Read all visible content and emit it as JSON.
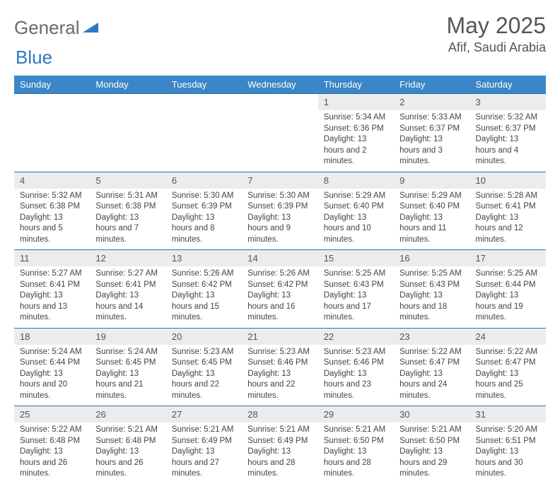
{
  "logo": {
    "part1": "General",
    "part2": "Blue"
  },
  "title": "May 2025",
  "location": "Afif, Saudi Arabia",
  "colors": {
    "header_bg": "#3b86c6",
    "header_text": "#ffffff",
    "daynum_bg": "#ececec",
    "row_border": "#2f6fa8",
    "logo_gray": "#6a6a6a",
    "logo_blue": "#2a7ac0"
  },
  "weekdays": [
    "Sunday",
    "Monday",
    "Tuesday",
    "Wednesday",
    "Thursday",
    "Friday",
    "Saturday"
  ],
  "weeks": [
    [
      {
        "empty": true
      },
      {
        "empty": true
      },
      {
        "empty": true
      },
      {
        "empty": true
      },
      {
        "num": "1",
        "sunrise": "5:34 AM",
        "sunset": "6:36 PM",
        "daylight": "13 hours and 2 minutes."
      },
      {
        "num": "2",
        "sunrise": "5:33 AM",
        "sunset": "6:37 PM",
        "daylight": "13 hours and 3 minutes."
      },
      {
        "num": "3",
        "sunrise": "5:32 AM",
        "sunset": "6:37 PM",
        "daylight": "13 hours and 4 minutes."
      }
    ],
    [
      {
        "num": "4",
        "sunrise": "5:32 AM",
        "sunset": "6:38 PM",
        "daylight": "13 hours and 5 minutes."
      },
      {
        "num": "5",
        "sunrise": "5:31 AM",
        "sunset": "6:38 PM",
        "daylight": "13 hours and 7 minutes."
      },
      {
        "num": "6",
        "sunrise": "5:30 AM",
        "sunset": "6:39 PM",
        "daylight": "13 hours and 8 minutes."
      },
      {
        "num": "7",
        "sunrise": "5:30 AM",
        "sunset": "6:39 PM",
        "daylight": "13 hours and 9 minutes."
      },
      {
        "num": "8",
        "sunrise": "5:29 AM",
        "sunset": "6:40 PM",
        "daylight": "13 hours and 10 minutes."
      },
      {
        "num": "9",
        "sunrise": "5:29 AM",
        "sunset": "6:40 PM",
        "daylight": "13 hours and 11 minutes."
      },
      {
        "num": "10",
        "sunrise": "5:28 AM",
        "sunset": "6:41 PM",
        "daylight": "13 hours and 12 minutes."
      }
    ],
    [
      {
        "num": "11",
        "sunrise": "5:27 AM",
        "sunset": "6:41 PM",
        "daylight": "13 hours and 13 minutes."
      },
      {
        "num": "12",
        "sunrise": "5:27 AM",
        "sunset": "6:41 PM",
        "daylight": "13 hours and 14 minutes."
      },
      {
        "num": "13",
        "sunrise": "5:26 AM",
        "sunset": "6:42 PM",
        "daylight": "13 hours and 15 minutes."
      },
      {
        "num": "14",
        "sunrise": "5:26 AM",
        "sunset": "6:42 PM",
        "daylight": "13 hours and 16 minutes."
      },
      {
        "num": "15",
        "sunrise": "5:25 AM",
        "sunset": "6:43 PM",
        "daylight": "13 hours and 17 minutes."
      },
      {
        "num": "16",
        "sunrise": "5:25 AM",
        "sunset": "6:43 PM",
        "daylight": "13 hours and 18 minutes."
      },
      {
        "num": "17",
        "sunrise": "5:25 AM",
        "sunset": "6:44 PM",
        "daylight": "13 hours and 19 minutes."
      }
    ],
    [
      {
        "num": "18",
        "sunrise": "5:24 AM",
        "sunset": "6:44 PM",
        "daylight": "13 hours and 20 minutes."
      },
      {
        "num": "19",
        "sunrise": "5:24 AM",
        "sunset": "6:45 PM",
        "daylight": "13 hours and 21 minutes."
      },
      {
        "num": "20",
        "sunrise": "5:23 AM",
        "sunset": "6:45 PM",
        "daylight": "13 hours and 22 minutes."
      },
      {
        "num": "21",
        "sunrise": "5:23 AM",
        "sunset": "6:46 PM",
        "daylight": "13 hours and 22 minutes."
      },
      {
        "num": "22",
        "sunrise": "5:23 AM",
        "sunset": "6:46 PM",
        "daylight": "13 hours and 23 minutes."
      },
      {
        "num": "23",
        "sunrise": "5:22 AM",
        "sunset": "6:47 PM",
        "daylight": "13 hours and 24 minutes."
      },
      {
        "num": "24",
        "sunrise": "5:22 AM",
        "sunset": "6:47 PM",
        "daylight": "13 hours and 25 minutes."
      }
    ],
    [
      {
        "num": "25",
        "sunrise": "5:22 AM",
        "sunset": "6:48 PM",
        "daylight": "13 hours and 26 minutes."
      },
      {
        "num": "26",
        "sunrise": "5:21 AM",
        "sunset": "6:48 PM",
        "daylight": "13 hours and 26 minutes."
      },
      {
        "num": "27",
        "sunrise": "5:21 AM",
        "sunset": "6:49 PM",
        "daylight": "13 hours and 27 minutes."
      },
      {
        "num": "28",
        "sunrise": "5:21 AM",
        "sunset": "6:49 PM",
        "daylight": "13 hours and 28 minutes."
      },
      {
        "num": "29",
        "sunrise": "5:21 AM",
        "sunset": "6:50 PM",
        "daylight": "13 hours and 28 minutes."
      },
      {
        "num": "30",
        "sunrise": "5:21 AM",
        "sunset": "6:50 PM",
        "daylight": "13 hours and 29 minutes."
      },
      {
        "num": "31",
        "sunrise": "5:20 AM",
        "sunset": "6:51 PM",
        "daylight": "13 hours and 30 minutes."
      }
    ]
  ],
  "labels": {
    "sunrise": "Sunrise: ",
    "sunset": "Sunset: ",
    "daylight": "Daylight: "
  }
}
